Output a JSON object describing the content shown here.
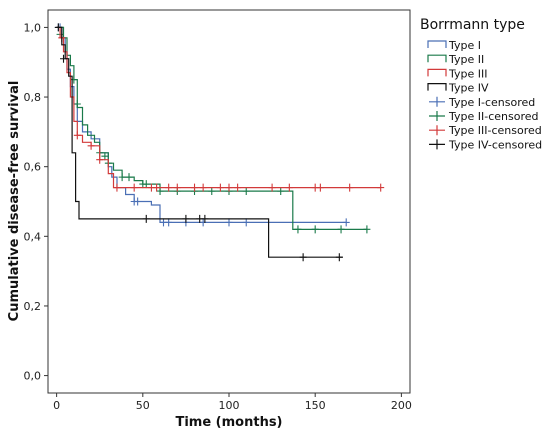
{
  "chart_data": {
    "type": "line",
    "subtype": "kaplan-meier",
    "xlabel": "Time (months)",
    "ylabel": "Cumulative disease-free survival",
    "xlim": [
      -5,
      205
    ],
    "ylim": [
      -0.05,
      1.05
    ],
    "xticks": [
      {
        "v": 0,
        "label": "0"
      },
      {
        "v": 50,
        "label": "50"
      },
      {
        "v": 100,
        "label": "100"
      },
      {
        "v": 150,
        "label": "150"
      },
      {
        "v": 200,
        "label": "200"
      }
    ],
    "yticks": [
      {
        "v": 0.0,
        "label": "0,0"
      },
      {
        "v": 0.2,
        "label": "0,2"
      },
      {
        "v": 0.4,
        "label": "0,4"
      },
      {
        "v": 0.6,
        "label": "0,6"
      },
      {
        "v": 0.8,
        "label": "0,8"
      },
      {
        "v": 1.0,
        "label": "1,0"
      }
    ],
    "legend": {
      "title": "Borrmann type",
      "position": "right",
      "entries": [
        {
          "label": "Type I",
          "color": "#4a6fb5",
          "kind": "line"
        },
        {
          "label": "Type II",
          "color": "#1a7a4a",
          "kind": "line"
        },
        {
          "label": "Type III",
          "color": "#d23a3a",
          "kind": "line"
        },
        {
          "label": "Type IV",
          "color": "#111111",
          "kind": "line"
        },
        {
          "label": "Type I-censored",
          "color": "#4a6fb5",
          "kind": "marker"
        },
        {
          "label": "Type II-censored",
          "color": "#1a7a4a",
          "kind": "marker"
        },
        {
          "label": "Type III-censored",
          "color": "#d23a3a",
          "kind": "marker"
        },
        {
          "label": "Type IV-censored",
          "color": "#111111",
          "kind": "marker"
        }
      ]
    },
    "series": [
      {
        "color": "#4a6fb5",
        "steps": [
          [
            0,
            1.0
          ],
          [
            3,
            0.97
          ],
          [
            5,
            0.93
          ],
          [
            6,
            0.88
          ],
          [
            8,
            0.83
          ],
          [
            10,
            0.78
          ],
          [
            12,
            0.73
          ],
          [
            15,
            0.7
          ],
          [
            20,
            0.68
          ],
          [
            25,
            0.64
          ],
          [
            30,
            0.6
          ],
          [
            32,
            0.57
          ],
          [
            35,
            0.54
          ],
          [
            40,
            0.52
          ],
          [
            45,
            0.5
          ],
          [
            55,
            0.49
          ],
          [
            60,
            0.44
          ],
          [
            168,
            0.44
          ]
        ],
        "censored": [
          [
            1,
            1.0
          ],
          [
            2,
            1.0
          ],
          [
            45,
            0.5
          ],
          [
            47,
            0.5
          ],
          [
            62,
            0.44
          ],
          [
            65,
            0.44
          ],
          [
            75,
            0.44
          ],
          [
            85,
            0.44
          ],
          [
            100,
            0.44
          ],
          [
            110,
            0.44
          ],
          [
            168,
            0.44
          ]
        ]
      },
      {
        "color": "#1a7a4a",
        "steps": [
          [
            0,
            1.0
          ],
          [
            4,
            0.97
          ],
          [
            6,
            0.92
          ],
          [
            8,
            0.89
          ],
          [
            10,
            0.85
          ],
          [
            12,
            0.77
          ],
          [
            15,
            0.72
          ],
          [
            18,
            0.69
          ],
          [
            22,
            0.67
          ],
          [
            25,
            0.64
          ],
          [
            30,
            0.61
          ],
          [
            33,
            0.59
          ],
          [
            38,
            0.57
          ],
          [
            45,
            0.56
          ],
          [
            50,
            0.55
          ],
          [
            60,
            0.53
          ],
          [
            135,
            0.53
          ],
          [
            137,
            0.42
          ],
          [
            180,
            0.42
          ]
        ],
        "censored": [
          [
            2,
            0.98
          ],
          [
            10,
            0.85
          ],
          [
            12,
            0.78
          ],
          [
            25,
            0.64
          ],
          [
            28,
            0.63
          ],
          [
            30,
            0.61
          ],
          [
            38,
            0.57
          ],
          [
            42,
            0.57
          ],
          [
            50,
            0.55
          ],
          [
            52,
            0.55
          ],
          [
            60,
            0.53
          ],
          [
            70,
            0.53
          ],
          [
            80,
            0.53
          ],
          [
            90,
            0.53
          ],
          [
            100,
            0.53
          ],
          [
            110,
            0.53
          ],
          [
            130,
            0.53
          ],
          [
            140,
            0.42
          ],
          [
            150,
            0.42
          ],
          [
            165,
            0.42
          ],
          [
            180,
            0.42
          ]
        ]
      },
      {
        "color": "#d23a3a",
        "steps": [
          [
            0,
            1.0
          ],
          [
            2,
            0.97
          ],
          [
            4,
            0.93
          ],
          [
            6,
            0.87
          ],
          [
            8,
            0.8
          ],
          [
            10,
            0.73
          ],
          [
            12,
            0.69
          ],
          [
            15,
            0.67
          ],
          [
            20,
            0.66
          ],
          [
            25,
            0.62
          ],
          [
            30,
            0.58
          ],
          [
            33,
            0.54
          ],
          [
            188,
            0.54
          ]
        ],
        "censored": [
          [
            3,
            0.97
          ],
          [
            12,
            0.69
          ],
          [
            20,
            0.66
          ],
          [
            25,
            0.62
          ],
          [
            35,
            0.54
          ],
          [
            45,
            0.54
          ],
          [
            55,
            0.54
          ],
          [
            58,
            0.54
          ],
          [
            65,
            0.54
          ],
          [
            70,
            0.54
          ],
          [
            80,
            0.54
          ],
          [
            85,
            0.54
          ],
          [
            95,
            0.54
          ],
          [
            100,
            0.54
          ],
          [
            105,
            0.54
          ],
          [
            125,
            0.54
          ],
          [
            135,
            0.54
          ],
          [
            150,
            0.54
          ],
          [
            153,
            0.54
          ],
          [
            170,
            0.54
          ],
          [
            188,
            0.54
          ]
        ]
      },
      {
        "color": "#111111",
        "steps": [
          [
            0,
            1.0
          ],
          [
            3,
            0.95
          ],
          [
            5,
            0.91
          ],
          [
            7,
            0.86
          ],
          [
            9,
            0.64
          ],
          [
            11,
            0.5
          ],
          [
            13,
            0.45
          ],
          [
            122,
            0.45
          ],
          [
            123,
            0.34
          ],
          [
            166,
            0.34
          ]
        ],
        "censored": [
          [
            1,
            1.0
          ],
          [
            4,
            0.91
          ],
          [
            52,
            0.45
          ],
          [
            75,
            0.45
          ],
          [
            83,
            0.45
          ],
          [
            86,
            0.45
          ],
          [
            143,
            0.34
          ],
          [
            164,
            0.34
          ]
        ]
      }
    ]
  }
}
